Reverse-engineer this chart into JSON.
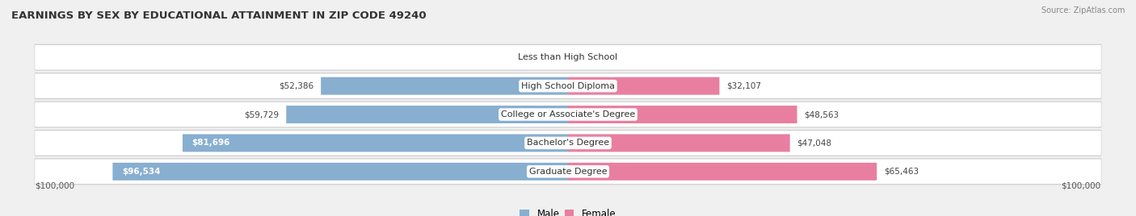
{
  "title": "EARNINGS BY SEX BY EDUCATIONAL ATTAINMENT IN ZIP CODE 49240",
  "source": "Source: ZipAtlas.com",
  "categories": [
    "Less than High School",
    "High School Diploma",
    "College or Associate's Degree",
    "Bachelor's Degree",
    "Graduate Degree"
  ],
  "male_values": [
    0,
    52386,
    59729,
    81696,
    96534
  ],
  "female_values": [
    0,
    32107,
    48563,
    47048,
    65463
  ],
  "male_color": "#88aed0",
  "female_color": "#e87fa0",
  "male_label": "Male",
  "female_label": "Female",
  "max_value": 100000,
  "bg_color": "#f0f0f0",
  "row_bg_color": "#ffffff",
  "row_border_color": "#cccccc",
  "axis_label": "$100,000",
  "title_fontsize": 9.5,
  "val_fontsize": 7.5,
  "cat_fontsize": 8,
  "bar_height": 0.62,
  "inside_label_threshold": 75000
}
